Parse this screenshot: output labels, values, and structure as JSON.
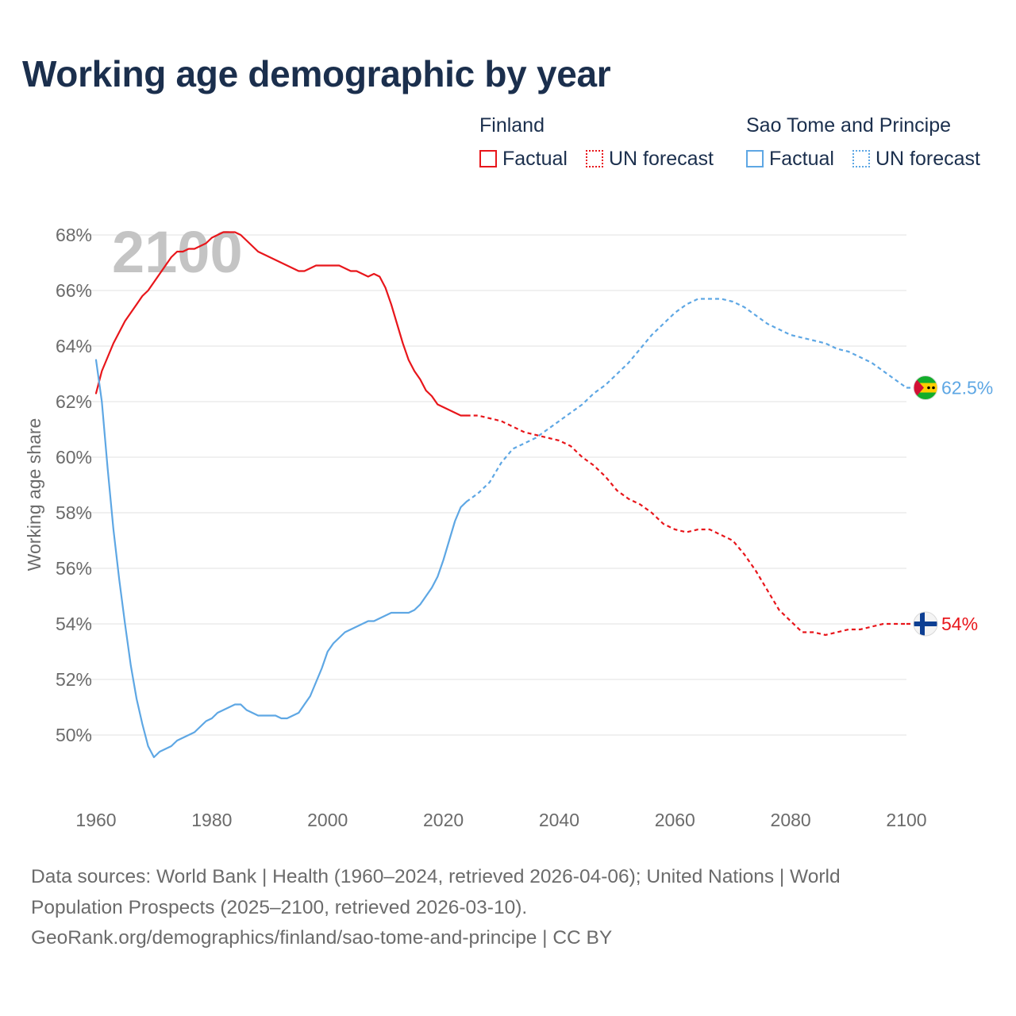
{
  "title": "Working age demographic by year",
  "legend": {
    "groups": [
      {
        "name": "Finland",
        "factual_label": "Factual",
        "forecast_label": "UN forecast",
        "color": "#e8161b"
      },
      {
        "name": "Sao Tome and Principe",
        "factual_label": "Factual",
        "forecast_label": "UN forecast",
        "color": "#5ea7e4"
      }
    ]
  },
  "chart_data": {
    "type": "line",
    "title": "Working age demographic by year",
    "xlabel": "",
    "ylabel": "Working age share",
    "xlim": [
      1960,
      2100
    ],
    "ylim": [
      48,
      69
    ],
    "x_ticks": [
      1960,
      1980,
      2000,
      2020,
      2040,
      2060,
      2080,
      2100
    ],
    "y_ticks": [
      50,
      52,
      54,
      56,
      58,
      60,
      62,
      64,
      66,
      68
    ],
    "y_tick_labels": [
      "50%",
      "52%",
      "54%",
      "56%",
      "58%",
      "60%",
      "62%",
      "64%",
      "66%",
      "68%"
    ],
    "x_tick_labels": [
      "1960",
      "1980",
      "2000",
      "2020",
      "2040",
      "2060",
      "2080",
      "2100"
    ],
    "year_watermark": "2100",
    "factual_end_year": 2024,
    "series": [
      {
        "name": "Finland",
        "color": "#e8161b",
        "end_label": "54%",
        "flag": "finland",
        "points": [
          [
            1960,
            62.3
          ],
          [
            1961,
            63.1
          ],
          [
            1962,
            63.6
          ],
          [
            1963,
            64.1
          ],
          [
            1964,
            64.5
          ],
          [
            1965,
            64.9
          ],
          [
            1966,
            65.2
          ],
          [
            1967,
            65.5
          ],
          [
            1968,
            65.8
          ],
          [
            1969,
            66.0
          ],
          [
            1970,
            66.3
          ],
          [
            1971,
            66.6
          ],
          [
            1972,
            66.9
          ],
          [
            1973,
            67.2
          ],
          [
            1974,
            67.4
          ],
          [
            1975,
            67.4
          ],
          [
            1976,
            67.5
          ],
          [
            1977,
            67.5
          ],
          [
            1978,
            67.6
          ],
          [
            1979,
            67.7
          ],
          [
            1980,
            67.9
          ],
          [
            1981,
            68.0
          ],
          [
            1982,
            68.1
          ],
          [
            1983,
            68.1
          ],
          [
            1984,
            68.1
          ],
          [
            1985,
            68.0
          ],
          [
            1986,
            67.8
          ],
          [
            1987,
            67.6
          ],
          [
            1988,
            67.4
          ],
          [
            1989,
            67.3
          ],
          [
            1990,
            67.2
          ],
          [
            1991,
            67.1
          ],
          [
            1992,
            67.0
          ],
          [
            1993,
            66.9
          ],
          [
            1994,
            66.8
          ],
          [
            1995,
            66.7
          ],
          [
            1996,
            66.7
          ],
          [
            1997,
            66.8
          ],
          [
            1998,
            66.9
          ],
          [
            1999,
            66.9
          ],
          [
            2000,
            66.9
          ],
          [
            2001,
            66.9
          ],
          [
            2002,
            66.9
          ],
          [
            2003,
            66.8
          ],
          [
            2004,
            66.7
          ],
          [
            2005,
            66.7
          ],
          [
            2006,
            66.6
          ],
          [
            2007,
            66.5
          ],
          [
            2008,
            66.6
          ],
          [
            2009,
            66.5
          ],
          [
            2010,
            66.1
          ],
          [
            2011,
            65.5
          ],
          [
            2012,
            64.8
          ],
          [
            2013,
            64.1
          ],
          [
            2014,
            63.5
          ],
          [
            2015,
            63.1
          ],
          [
            2016,
            62.8
          ],
          [
            2017,
            62.4
          ],
          [
            2018,
            62.2
          ],
          [
            2019,
            61.9
          ],
          [
            2020,
            61.8
          ],
          [
            2021,
            61.7
          ],
          [
            2022,
            61.6
          ],
          [
            2023,
            61.5
          ],
          [
            2024,
            61.5
          ],
          [
            2026,
            61.5
          ],
          [
            2028,
            61.4
          ],
          [
            2030,
            61.3
          ],
          [
            2032,
            61.1
          ],
          [
            2034,
            60.9
          ],
          [
            2036,
            60.8
          ],
          [
            2038,
            60.7
          ],
          [
            2040,
            60.6
          ],
          [
            2042,
            60.4
          ],
          [
            2044,
            60.0
          ],
          [
            2046,
            59.7
          ],
          [
            2048,
            59.3
          ],
          [
            2050,
            58.8
          ],
          [
            2052,
            58.5
          ],
          [
            2054,
            58.3
          ],
          [
            2056,
            58.0
          ],
          [
            2058,
            57.6
          ],
          [
            2060,
            57.4
          ],
          [
            2062,
            57.3
          ],
          [
            2064,
            57.4
          ],
          [
            2066,
            57.4
          ],
          [
            2068,
            57.2
          ],
          [
            2070,
            57.0
          ],
          [
            2072,
            56.5
          ],
          [
            2074,
            55.9
          ],
          [
            2076,
            55.2
          ],
          [
            2078,
            54.5
          ],
          [
            2080,
            54.1
          ],
          [
            2082,
            53.7
          ],
          [
            2084,
            53.7
          ],
          [
            2086,
            53.6
          ],
          [
            2088,
            53.7
          ],
          [
            2090,
            53.8
          ],
          [
            2092,
            53.8
          ],
          [
            2094,
            53.9
          ],
          [
            2096,
            54.0
          ],
          [
            2098,
            54.0
          ],
          [
            2100,
            54.0
          ]
        ]
      },
      {
        "name": "Sao Tome and Principe",
        "color": "#5ea7e4",
        "end_label": "62.5%",
        "flag": "sao-tome-and-principe",
        "points": [
          [
            1960,
            63.5
          ],
          [
            1961,
            62.0
          ],
          [
            1962,
            59.6
          ],
          [
            1963,
            57.4
          ],
          [
            1964,
            55.6
          ],
          [
            1965,
            54.0
          ],
          [
            1966,
            52.5
          ],
          [
            1967,
            51.3
          ],
          [
            1968,
            50.4
          ],
          [
            1969,
            49.6
          ],
          [
            1970,
            49.2
          ],
          [
            1971,
            49.4
          ],
          [
            1972,
            49.5
          ],
          [
            1973,
            49.6
          ],
          [
            1974,
            49.8
          ],
          [
            1975,
            49.9
          ],
          [
            1976,
            50.0
          ],
          [
            1977,
            50.1
          ],
          [
            1978,
            50.3
          ],
          [
            1979,
            50.5
          ],
          [
            1980,
            50.6
          ],
          [
            1981,
            50.8
          ],
          [
            1982,
            50.9
          ],
          [
            1983,
            51.0
          ],
          [
            1984,
            51.1
          ],
          [
            1985,
            51.1
          ],
          [
            1986,
            50.9
          ],
          [
            1987,
            50.8
          ],
          [
            1988,
            50.7
          ],
          [
            1989,
            50.7
          ],
          [
            1990,
            50.7
          ],
          [
            1991,
            50.7
          ],
          [
            1992,
            50.6
          ],
          [
            1993,
            50.6
          ],
          [
            1994,
            50.7
          ],
          [
            1995,
            50.8
          ],
          [
            1996,
            51.1
          ],
          [
            1997,
            51.4
          ],
          [
            1998,
            51.9
          ],
          [
            1999,
            52.4
          ],
          [
            2000,
            53.0
          ],
          [
            2001,
            53.3
          ],
          [
            2002,
            53.5
          ],
          [
            2003,
            53.7
          ],
          [
            2004,
            53.8
          ],
          [
            2005,
            53.9
          ],
          [
            2006,
            54.0
          ],
          [
            2007,
            54.1
          ],
          [
            2008,
            54.1
          ],
          [
            2009,
            54.2
          ],
          [
            2010,
            54.3
          ],
          [
            2011,
            54.4
          ],
          [
            2012,
            54.4
          ],
          [
            2013,
            54.4
          ],
          [
            2014,
            54.4
          ],
          [
            2015,
            54.5
          ],
          [
            2016,
            54.7
          ],
          [
            2017,
            55.0
          ],
          [
            2018,
            55.3
          ],
          [
            2019,
            55.7
          ],
          [
            2020,
            56.3
          ],
          [
            2021,
            57.0
          ],
          [
            2022,
            57.7
          ],
          [
            2023,
            58.2
          ],
          [
            2024,
            58.4
          ],
          [
            2026,
            58.7
          ],
          [
            2028,
            59.1
          ],
          [
            2030,
            59.8
          ],
          [
            2032,
            60.3
          ],
          [
            2034,
            60.5
          ],
          [
            2036,
            60.7
          ],
          [
            2038,
            61.0
          ],
          [
            2040,
            61.3
          ],
          [
            2042,
            61.6
          ],
          [
            2044,
            61.9
          ],
          [
            2046,
            62.3
          ],
          [
            2048,
            62.6
          ],
          [
            2050,
            63.0
          ],
          [
            2052,
            63.4
          ],
          [
            2054,
            63.9
          ],
          [
            2056,
            64.4
          ],
          [
            2058,
            64.8
          ],
          [
            2060,
            65.2
          ],
          [
            2062,
            65.5
          ],
          [
            2064,
            65.7
          ],
          [
            2066,
            65.7
          ],
          [
            2068,
            65.7
          ],
          [
            2070,
            65.6
          ],
          [
            2072,
            65.4
          ],
          [
            2074,
            65.1
          ],
          [
            2076,
            64.8
          ],
          [
            2078,
            64.6
          ],
          [
            2080,
            64.4
          ],
          [
            2082,
            64.3
          ],
          [
            2084,
            64.2
          ],
          [
            2086,
            64.1
          ],
          [
            2088,
            63.9
          ],
          [
            2090,
            63.8
          ],
          [
            2092,
            63.6
          ],
          [
            2094,
            63.4
          ],
          [
            2096,
            63.1
          ],
          [
            2098,
            62.8
          ],
          [
            2100,
            62.5
          ]
        ]
      }
    ]
  },
  "source_lines": [
    "Data sources: World Bank | Health (1960–2024, retrieved 2026-04-06); United Nations | World",
    "Population Prospects (2025–2100, retrieved 2026-03-10).",
    "GeoRank.org/demographics/finland/sao-tome-and-principe | CC BY"
  ]
}
